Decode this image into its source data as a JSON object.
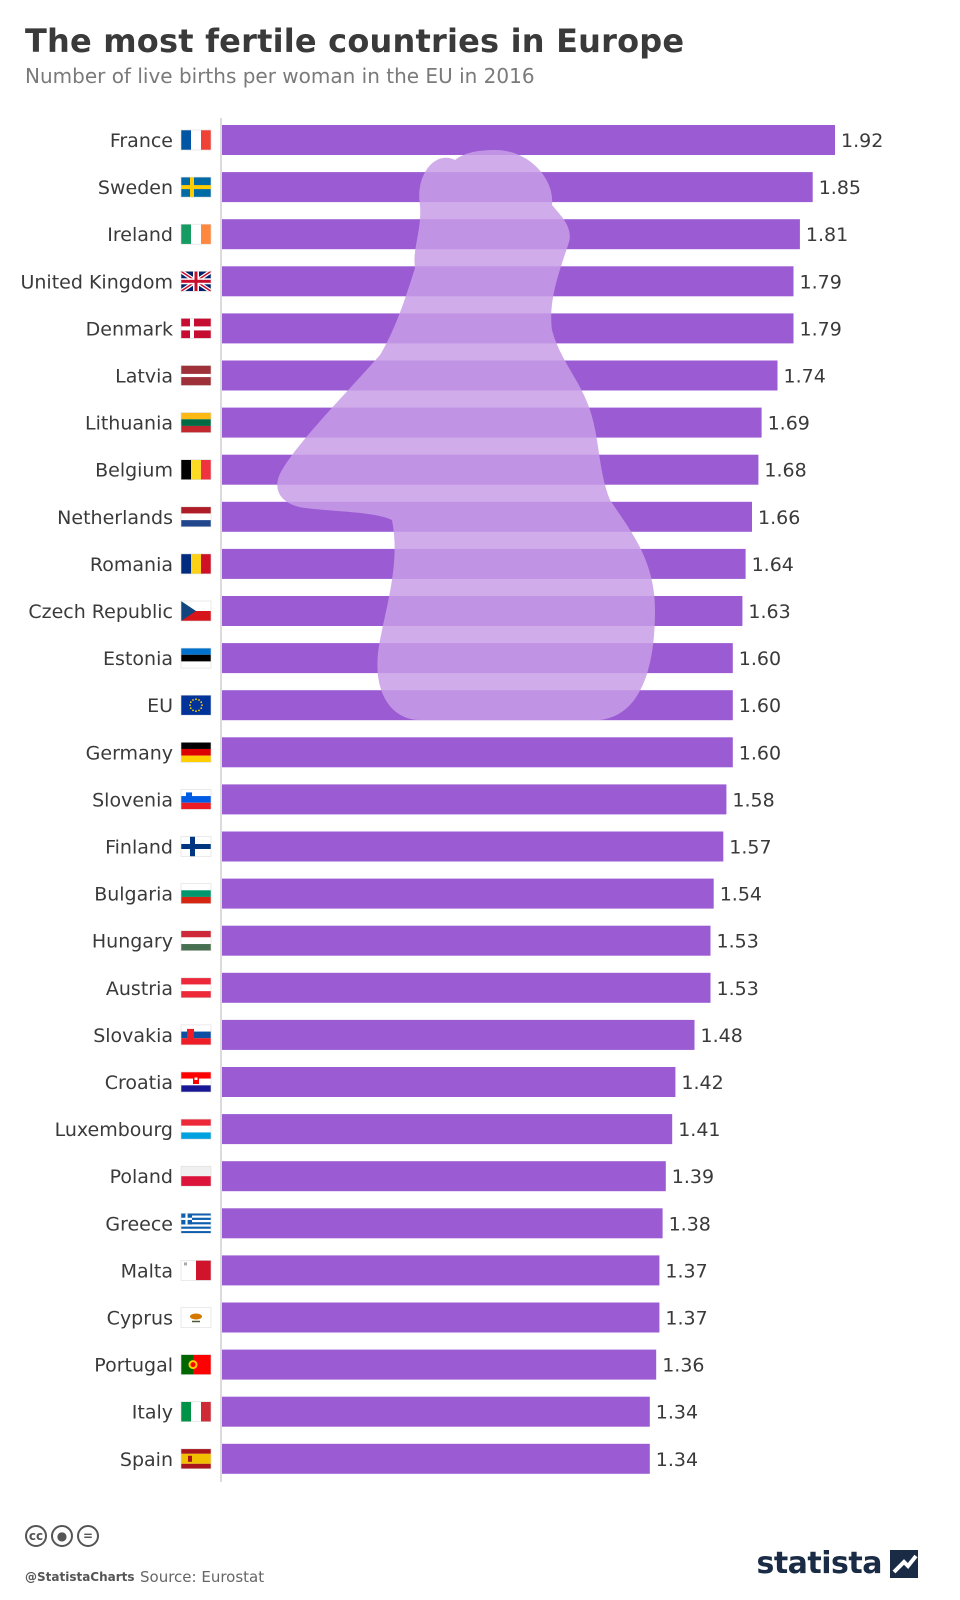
{
  "title": "The most fertile countries in Europe",
  "subtitle": "Number of live births per woman in the EU in 2016",
  "colors": {
    "bar": "#9b5bd3",
    "silhouette": "#c89ee6",
    "axis": "#cfcfcf",
    "brand": "#1a2b45"
  },
  "footer": {
    "handle": "@StatistaCharts",
    "source": "Source: Eurostat",
    "brand": "statista",
    "license_icons": [
      "cc-icon",
      "by-icon",
      "nd-icon"
    ]
  },
  "chart_data": {
    "type": "bar",
    "orientation": "horizontal",
    "title": "The most fertile countries in Europe",
    "subtitle": "Number of live births per woman in the EU in 2016",
    "xlabel": "",
    "ylabel": "",
    "xlim": [
      0,
      1.92
    ],
    "grid": false,
    "categories": [
      "France",
      "Sweden",
      "Ireland",
      "United Kingdom",
      "Denmark",
      "Latvia",
      "Lithuania",
      "Belgium",
      "Netherlands",
      "Romania",
      "Czech Republic",
      "Estonia",
      "EU",
      "Germany",
      "Slovenia",
      "Finland",
      "Bulgaria",
      "Hungary",
      "Austria",
      "Slovakia",
      "Croatia",
      "Luxembourg",
      "Poland",
      "Greece",
      "Malta",
      "Cyprus",
      "Portugal",
      "Italy",
      "Spain"
    ],
    "values": [
      1.92,
      1.85,
      1.81,
      1.79,
      1.79,
      1.74,
      1.69,
      1.68,
      1.66,
      1.64,
      1.63,
      1.6,
      1.6,
      1.6,
      1.58,
      1.57,
      1.54,
      1.53,
      1.53,
      1.48,
      1.42,
      1.41,
      1.39,
      1.38,
      1.37,
      1.37,
      1.36,
      1.34,
      1.34
    ],
    "value_labels": [
      "1.92",
      "1.85",
      "1.81",
      "1.79",
      "1.79",
      "1.74",
      "1.69",
      "1.68",
      "1.66",
      "1.64",
      "1.63",
      "1.60",
      "1.60",
      "1.60",
      "1.58",
      "1.57",
      "1.54",
      "1.53",
      "1.53",
      "1.48",
      "1.42",
      "1.41",
      "1.39",
      "1.38",
      "1.37",
      "1.37",
      "1.36",
      "1.34",
      "1.34"
    ],
    "flags": [
      "france-flag",
      "sweden-flag",
      "ireland-flag",
      "united-kingdom-flag",
      "denmark-flag",
      "latvia-flag",
      "lithuania-flag",
      "belgium-flag",
      "netherlands-flag",
      "romania-flag",
      "czech-republic-flag",
      "estonia-flag",
      "eu-flag",
      "germany-flag",
      "slovenia-flag",
      "finland-flag",
      "bulgaria-flag",
      "hungary-flag",
      "austria-flag",
      "slovakia-flag",
      "croatia-flag",
      "luxembourg-flag",
      "poland-flag",
      "greece-flag",
      "malta-flag",
      "cyprus-flag",
      "portugal-flag",
      "italy-flag",
      "spain-flag"
    ]
  }
}
